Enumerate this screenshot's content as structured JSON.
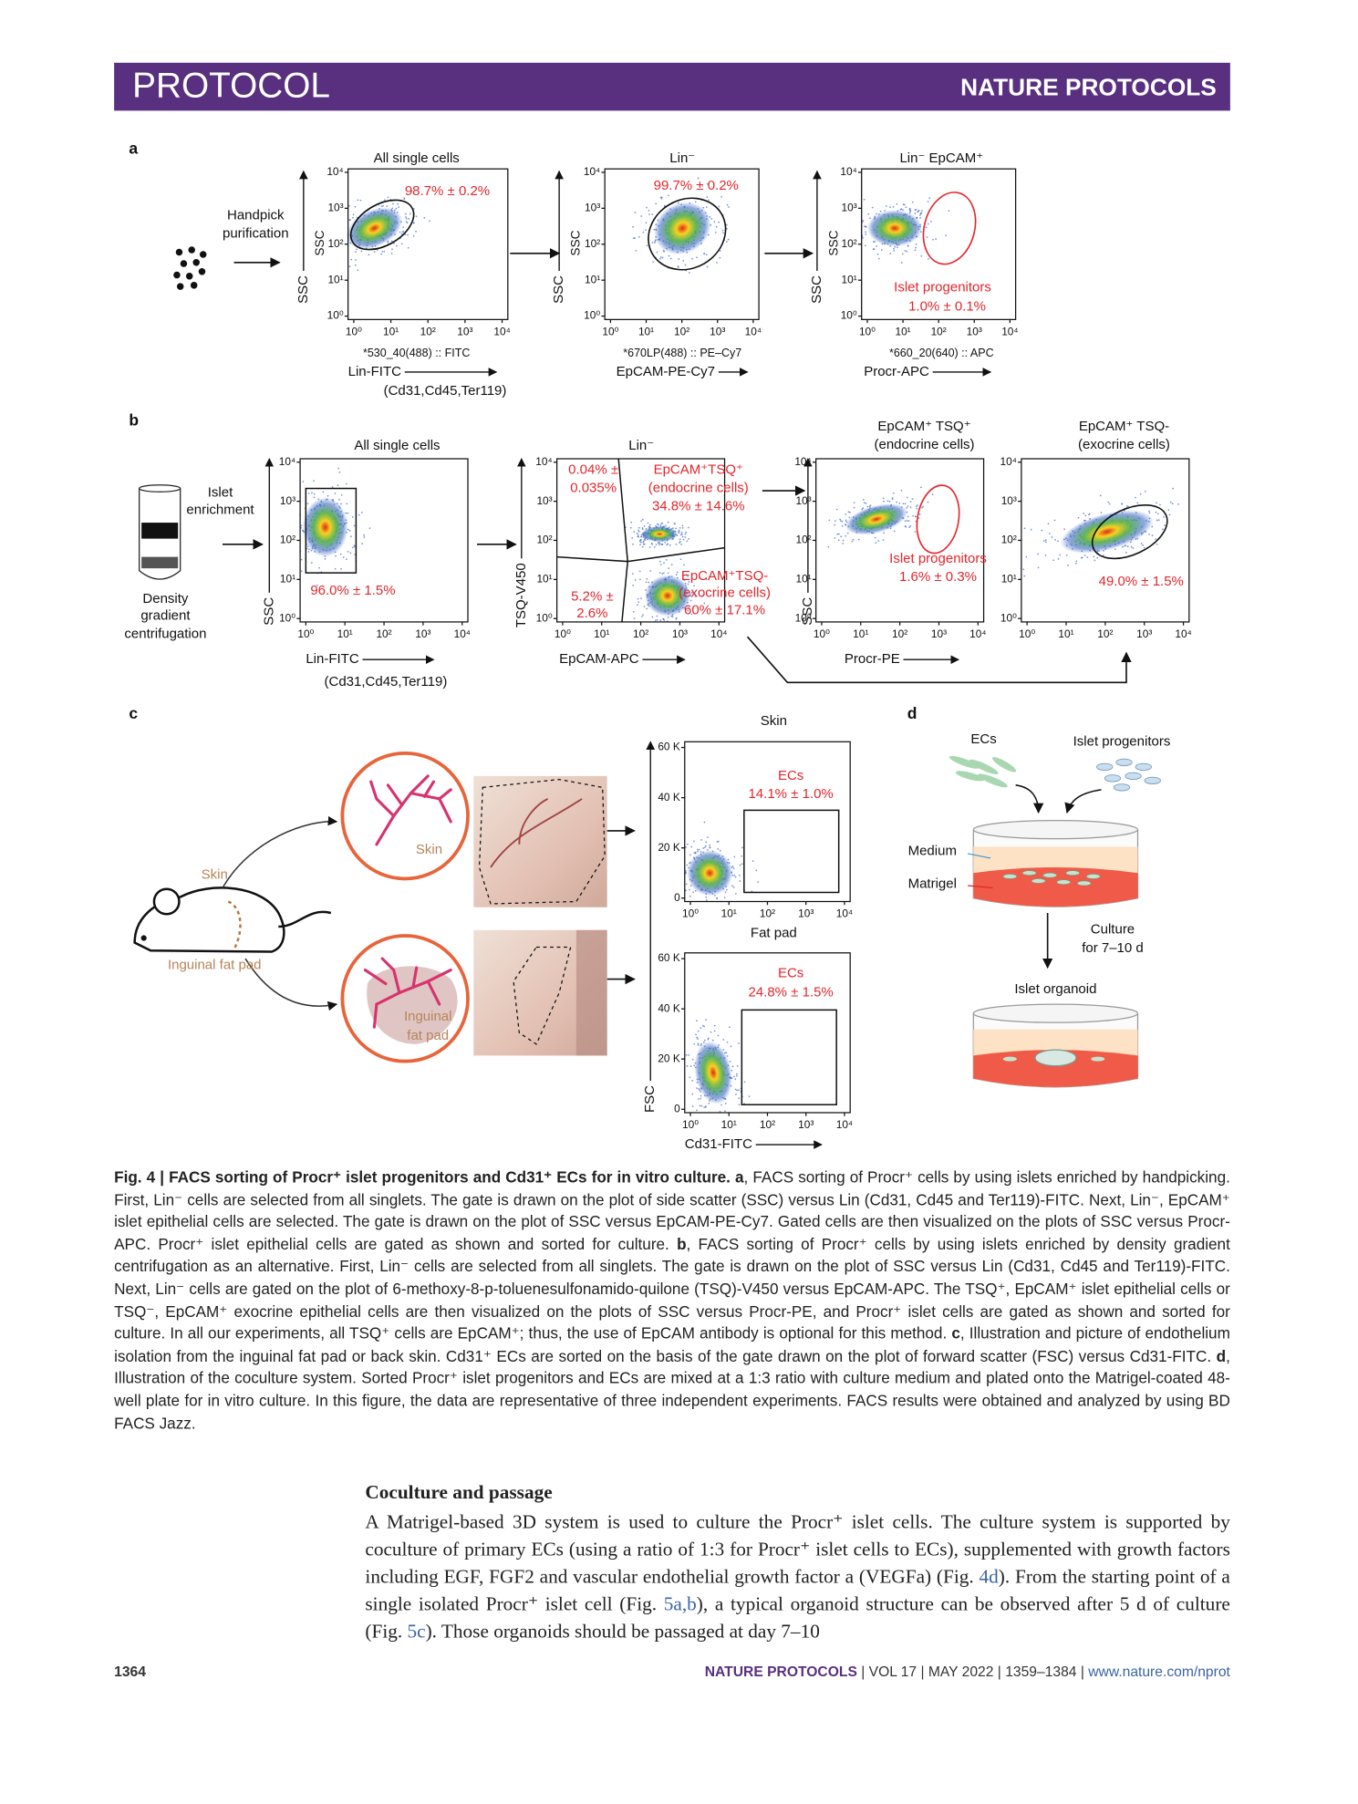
{
  "header": {
    "left": "PROTOCOL",
    "right": "NATURE PROTOCOLS"
  },
  "figure": {
    "a": {
      "letter": "a",
      "side_text": [
        "Handpick",
        "purification"
      ],
      "note": "(Cd31,Cd45,Ter119)",
      "plots": [
        {
          "title": "All single cells",
          "labels": [
            "98.7% ± 0.2%"
          ],
          "xsub": "*530_40(488) :: FITC",
          "ysub": "SSC",
          "ylabel": "SSC",
          "xlabel": "Lin-FITC",
          "xticks": [
            "10⁰",
            "10¹",
            "10²",
            "10³",
            "10⁴"
          ],
          "yticks": [
            "10⁰",
            "10¹",
            "10²",
            "10³",
            "10⁴"
          ]
        },
        {
          "title": "Lin⁻",
          "labels": [
            "99.7% ± 0.2%"
          ],
          "xsub": "*670LP(488) :: PE–Cy7",
          "ysub": "SSC",
          "ylabel": "SSC",
          "xlabel": "EpCAM-PE-Cy7",
          "xticks": [
            "10⁰",
            "10¹",
            "10²",
            "10³",
            "10⁴"
          ],
          "yticks": [
            "10⁰",
            "10¹",
            "10²",
            "10³",
            "10⁴"
          ]
        },
        {
          "title": "Lin⁻ EpCAM⁺",
          "labels": [
            "Islet progenitors",
            "1.0% ± 0.1%"
          ],
          "xsub": "*660_20(640) :: APC",
          "ysub": "SSC",
          "ylabel": "SSC",
          "xlabel": "Procr-APC",
          "xticks": [
            "10⁰",
            "10¹",
            "10²",
            "10³",
            "10⁴"
          ],
          "yticks": [
            "10⁰",
            "10¹",
            "10²",
            "10³",
            "10⁴"
          ]
        }
      ]
    },
    "b": {
      "letter": "b",
      "side_text": [
        "Islet",
        "enrichment"
      ],
      "tube_text": [
        "Density",
        "gradient",
        "centrifugation"
      ],
      "note": "(Cd31,Cd45,Ter119)",
      "plots": [
        {
          "title": [
            "All single cells"
          ],
          "labels": [
            "96.0% ± 1.5%"
          ],
          "ylabel": "SSC",
          "xlabel": "Lin-FITC",
          "xticks": [
            "10⁰",
            "10¹",
            "10²",
            "10³",
            "10⁴"
          ],
          "yticks": [
            "10⁰",
            "10¹",
            "10²",
            "10³",
            "10⁴"
          ]
        },
        {
          "title": [
            "Lin⁻"
          ],
          "labels": [
            "0.04% ±",
            "0.035%",
            "EpCAM⁺TSQ⁺",
            "(endocrine cells)",
            "34.8% ± 14.6%",
            "5.2% ±",
            "2.6%",
            "EpCAM⁺TSQ-",
            "(exocrine cells)",
            "60% ± 17.1%"
          ],
          "ylabel": "TSQ-V450",
          "xlabel": "EpCAM-APC",
          "xticks": [
            "10⁰",
            "10¹",
            "10²",
            "10³",
            "10⁴"
          ],
          "yticks": [
            "10⁰",
            "10¹",
            "10²",
            "10³",
            "10⁴"
          ]
        },
        {
          "title": [
            "EpCAM⁺ TSQ⁺",
            "(endocrine cells)"
          ],
          "labels": [
            "Islet progenitors",
            "1.6% ± 0.3%"
          ],
          "ylabel": "SSC",
          "xlabel": "Procr-PE",
          "xticks": [
            "10⁰",
            "10¹",
            "10²",
            "10³",
            "10⁴"
          ],
          "yticks": [
            "10⁰",
            "10¹",
            "10²",
            "10³",
            "10⁴"
          ]
        },
        {
          "title": [
            "EpCAM⁺ TSQ-",
            "(exocrine cells)"
          ],
          "labels": [
            "49.0% ± 1.5%"
          ],
          "xticks": [
            "10⁰",
            "10¹",
            "10²",
            "10³",
            "10⁴"
          ],
          "yticks": [
            "10⁰",
            "10¹",
            "10²",
            "10³",
            "10⁴"
          ]
        }
      ]
    },
    "c": {
      "letter": "c",
      "illustration": [
        "Skin",
        "Skin",
        "Inguinal fat pad",
        "Inguinal",
        "fat pad"
      ],
      "plots": [
        {
          "title": "Skin",
          "labels": [
            "ECs",
            "14.1% ± 1.0%"
          ],
          "xticks": [
            "10⁰",
            "10¹",
            "10²",
            "10³",
            "10⁴"
          ],
          "yticks": [
            "0",
            "20 K",
            "40 K",
            "60 K"
          ]
        },
        {
          "title": "Fat pad",
          "labels": [
            "ECs",
            "24.8% ± 1.5%"
          ],
          "ylabel": "FSC",
          "xlabel": "Cd31-FITC",
          "xticks": [
            "10⁰",
            "10¹",
            "10²",
            "10³",
            "10⁴"
          ],
          "yticks": [
            "0",
            "20 K",
            "40 K",
            "60 K"
          ]
        }
      ]
    },
    "d": {
      "letter": "d",
      "labels": [
        "ECs",
        "Islet progenitors",
        "Medium",
        "Matrigel",
        "Culture",
        "for 7–10 d",
        "Islet organoid"
      ]
    }
  },
  "caption": {
    "label": "Fig. 4 |",
    "title": "FACS sorting of Procr⁺ islet progenitors and Cd31⁺ ECs for in vitro culture.",
    "panels": [
      {
        "letter": "a",
        "text": ", FACS sorting of Procr⁺ cells by using islets enriched by handpicking. First, Lin⁻ cells are selected from all singlets. The gate is drawn on the plot of side scatter (SSC) versus Lin (Cd31, Cd45 and Ter119)-FITC. Next, Lin⁻, EpCAM⁺ islet epithelial cells are selected. The gate is drawn on the plot of SSC versus EpCAM-PE-Cy7. Gated cells are then visualized on the plots of SSC versus Procr-APC. Procr⁺ islet epithelial cells are gated as shown and sorted for culture."
      },
      {
        "letter": "b",
        "text": ", FACS sorting of Procr⁺ cells by using islets enriched by density gradient centrifugation as an alternative. First, Lin⁻ cells are selected from all singlets. The gate is drawn on the plot of SSC versus Lin (Cd31, Cd45 and Ter119)-FITC. Next, Lin⁻ cells are gated on the plot of 6-methoxy-8-p-toluenesulfonamido-quilone (TSQ)-V450 versus EpCAM-APC. The TSQ⁺, EpCAM⁺ islet epithelial cells or TSQ⁻, EpCAM⁺ exocrine epithelial cells are then visualized on the plots of SSC versus Procr-PE, and Procr⁺ islet cells are gated as shown and sorted for culture. In all our experiments, all TSQ⁺ cells are EpCAM⁺; thus, the use of EpCAM antibody is optional for this method."
      },
      {
        "letter": "c",
        "text": ", Illustration and picture of endothelium isolation from the inguinal fat pad or back skin. Cd31⁺ ECs are sorted on the basis of the gate drawn on the plot of forward scatter (FSC) versus Cd31-FITC."
      },
      {
        "letter": "d",
        "text": ", Illustration of the coculture system. Sorted Procr⁺ islet progenitors and ECs are mixed at a 1:3 ratio with culture medium and plated onto the Matrigel-coated 48-well plate for in vitro culture. In this figure, the data are representative of three independent experiments. FACS results were obtained and analyzed by using BD FACS Jazz."
      }
    ]
  },
  "body": {
    "heading": "Coculture and passage",
    "paragraph": [
      "A Matrigel-based 3D system is used to culture the Procr⁺ islet cells. The culture system is supported by coculture of primary ECs (using a ratio of 1:3 for Procr⁺ islet cells to ECs), supplemented with growth factors including EGF, FGF2 and vascular endothelial growth factor a (VEGFa) (Fig. ",
      "4d",
      "). From the starting point of a single isolated Procr⁺ islet cell (Fig. ",
      "5a,b",
      "), a typical organoid structure can be observed after 5 d of culture (Fig. ",
      "5c",
      "). Those organoids should be passaged at day 7–10"
    ]
  },
  "footer": {
    "page": "1364",
    "journal": "NATURE PROTOCOLS",
    "info": " | VOL 17 | MAY 2022 | 1359–1384 | ",
    "url": "www.nature.com/nprot"
  }
}
